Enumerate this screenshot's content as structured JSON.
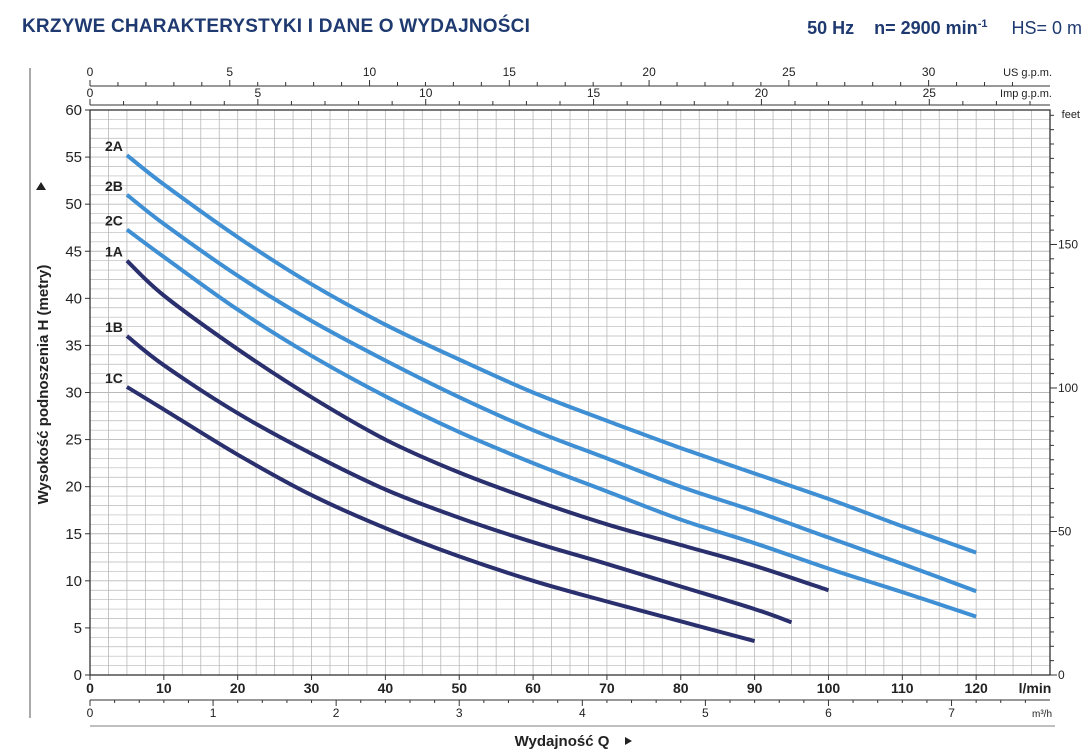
{
  "header": {
    "title": "KRZYWE CHARAKTERYSTYKI I DANE O WYDAJNOŚCI",
    "frequency": "50 Hz",
    "speed_label": "n= 2900 min",
    "speed_sup": "-1",
    "hs": "HS= 0 m"
  },
  "colors": {
    "series_1": "#2a2f6e",
    "series_2": "#3f8fd4",
    "grid": "#b9b9b9",
    "title": "#1f3a70"
  },
  "chart_data": {
    "type": "line",
    "ylabel": "Wysokość podnoszenia  H  (metry)",
    "xlabel": "Wydajność Q",
    "ylim": [
      0,
      60
    ],
    "xlim": [
      0,
      130
    ],
    "grid": true,
    "y_ticks": [
      0,
      5,
      10,
      15,
      20,
      25,
      30,
      35,
      40,
      45,
      50,
      55,
      60
    ],
    "x_ticks": [
      0,
      10,
      20,
      30,
      40,
      50,
      60,
      70,
      80,
      90,
      100,
      110,
      120
    ],
    "x_unit": "l/min",
    "secondary_axes": [
      {
        "unit": "US g.p.m.",
        "ticks": [
          0,
          5,
          10,
          15,
          20,
          25,
          30
        ]
      },
      {
        "unit": "Imp g.p.m.",
        "ticks": [
          0,
          5,
          10,
          15,
          20,
          25
        ]
      },
      {
        "unit": "m³/h",
        "ticks": [
          0,
          1,
          2,
          3,
          4,
          5,
          6,
          7
        ]
      },
      {
        "unit": "feet",
        "ticks": [
          0,
          50,
          100,
          150
        ]
      }
    ],
    "series": [
      {
        "name": "2A",
        "group": "2",
        "x": [
          5,
          10,
          20,
          30,
          40,
          50,
          60,
          70,
          80,
          90,
          100,
          110,
          120
        ],
        "y": [
          55.2,
          52.1,
          46.5,
          41.5,
          37.2,
          33.5,
          30.0,
          27.0,
          24.1,
          21.4,
          18.7,
          15.8,
          13.0
        ]
      },
      {
        "name": "2B",
        "group": "2",
        "x": [
          5,
          10,
          20,
          30,
          40,
          50,
          60,
          70,
          80,
          90,
          100,
          110,
          120
        ],
        "y": [
          51.0,
          47.9,
          42.4,
          37.6,
          33.4,
          29.5,
          26.0,
          23.0,
          20.0,
          17.4,
          14.6,
          11.8,
          8.9
        ]
      },
      {
        "name": "2C",
        "group": "2",
        "x": [
          5,
          10,
          20,
          30,
          40,
          50,
          60,
          70,
          80,
          90,
          100,
          110,
          120
        ],
        "y": [
          47.3,
          44.4,
          38.8,
          33.9,
          29.6,
          25.8,
          22.5,
          19.5,
          16.5,
          14.0,
          11.3,
          8.8,
          6.2
        ]
      },
      {
        "name": "1A",
        "group": "1",
        "x": [
          5,
          10,
          20,
          30,
          40,
          50,
          60,
          70,
          80,
          90,
          100
        ],
        "y": [
          44.0,
          40.3,
          34.6,
          29.5,
          25.0,
          21.5,
          18.6,
          16.0,
          13.8,
          11.6,
          9.0
        ]
      },
      {
        "name": "1B",
        "group": "1",
        "x": [
          5,
          10,
          20,
          30,
          40,
          50,
          60,
          70,
          80,
          90,
          95
        ],
        "y": [
          36.0,
          32.9,
          27.8,
          23.5,
          19.7,
          16.7,
          14.1,
          11.8,
          9.4,
          7.0,
          5.6
        ]
      },
      {
        "name": "1C",
        "group": "1",
        "x": [
          5,
          10,
          20,
          30,
          40,
          50,
          60,
          70,
          80,
          90
        ],
        "y": [
          30.6,
          28.2,
          23.4,
          19.1,
          15.6,
          12.6,
          10.0,
          7.8,
          5.7,
          3.6
        ]
      }
    ]
  }
}
